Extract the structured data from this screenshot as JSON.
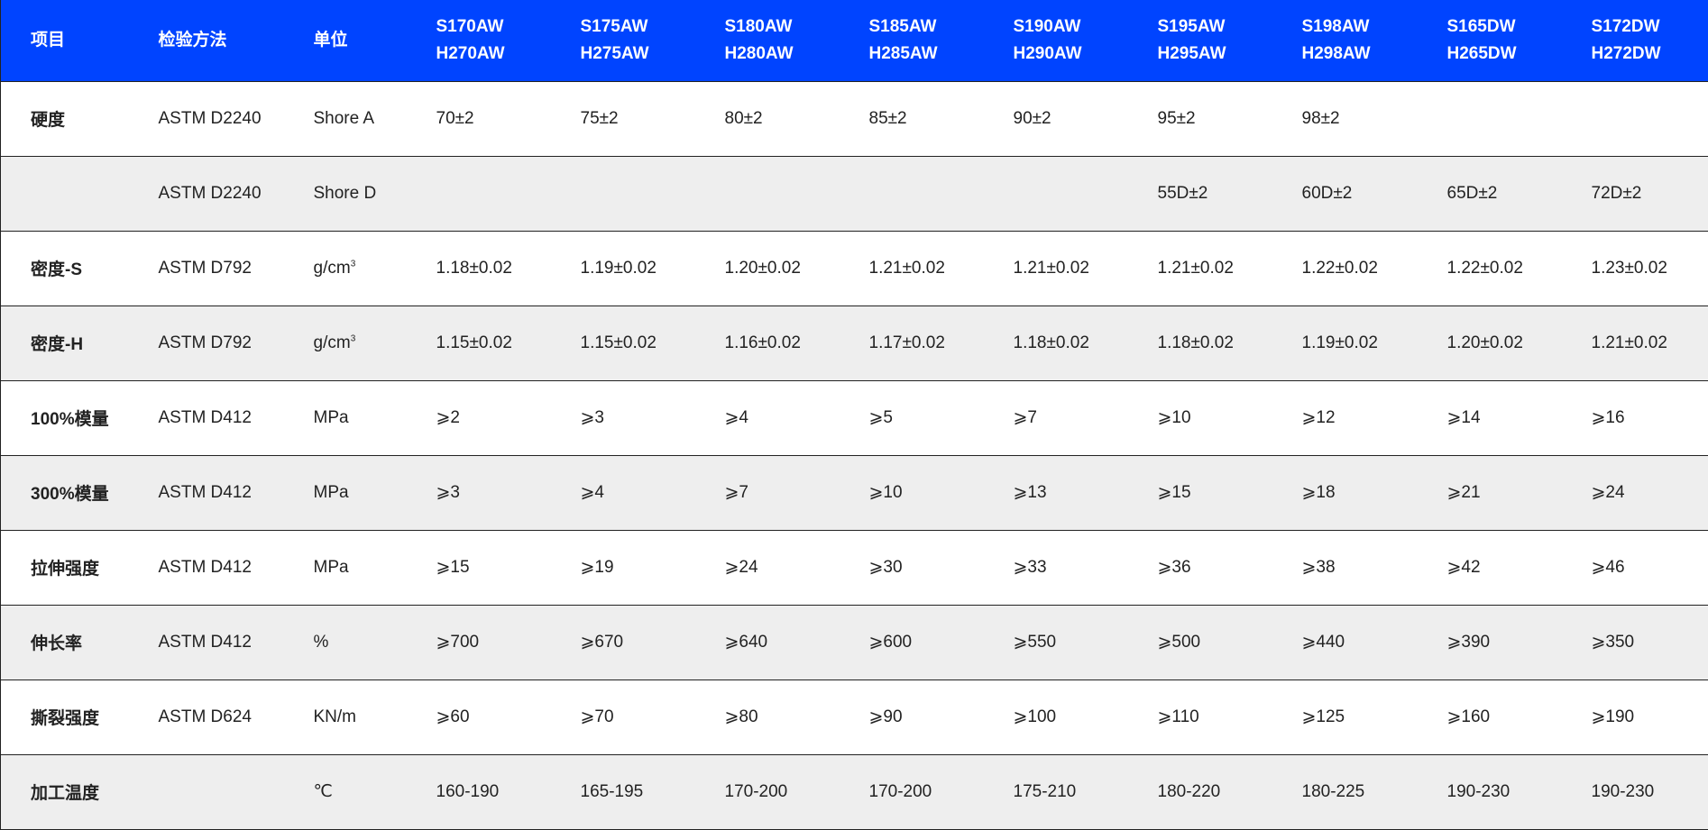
{
  "colors": {
    "header_bg": "#0044ff",
    "alt_row_bg": "#eeeeee"
  },
  "header": {
    "item": "项目",
    "method": "检验方法",
    "unit": "单位",
    "grades": [
      [
        "S170AW",
        "H270AW"
      ],
      [
        "S175AW",
        "H275AW"
      ],
      [
        "S180AW",
        "H280AW"
      ],
      [
        "S185AW",
        "H285AW"
      ],
      [
        "S190AW",
        "H290AW"
      ],
      [
        "S195AW",
        "H295AW"
      ],
      [
        "S198AW",
        "H298AW"
      ],
      [
        "S165DW",
        "H265DW"
      ],
      [
        "S172DW",
        "H272DW"
      ]
    ]
  },
  "rows": [
    {
      "item": "硬度",
      "method": "ASTM D2240",
      "unit": "Shore A",
      "values": [
        "70±2",
        "75±2",
        "80±2",
        "85±2",
        "90±2",
        "95±2",
        "98±2",
        "",
        ""
      ]
    },
    {
      "item": "",
      "method": "ASTM D2240",
      "unit": "Shore D",
      "values": [
        "",
        "",
        "",
        "",
        "",
        "55D±2",
        "60D±2",
        "65D±2",
        "72D±2"
      ]
    },
    {
      "item": "密度-S",
      "method": "ASTM D792",
      "unit": "g/cm",
      "unit_sup": "3",
      "values": [
        "1.18±0.02",
        "1.19±0.02",
        "1.20±0.02",
        "1.21±0.02",
        "1.21±0.02",
        "1.21±0.02",
        "1.22±0.02",
        "1.22±0.02",
        "1.23±0.02"
      ]
    },
    {
      "item": "密度-H",
      "method": "ASTM D792",
      "unit": "g/cm",
      "unit_sup": "3",
      "values": [
        "1.15±0.02",
        "1.15±0.02",
        "1.16±0.02",
        "1.17±0.02",
        "1.18±0.02",
        "1.18±0.02",
        "1.19±0.02",
        "1.20±0.02",
        "1.21±0.02"
      ]
    },
    {
      "item": "100%模量",
      "method": "ASTM D412",
      "unit": "MPa",
      "values": [
        "⩾2",
        "⩾3",
        "⩾4",
        "⩾5",
        "⩾7",
        "⩾10",
        "⩾12",
        "⩾14",
        "⩾16"
      ]
    },
    {
      "item": "300%模量",
      "method": "ASTM D412",
      "unit": "MPa",
      "values": [
        "⩾3",
        "⩾4",
        "⩾7",
        "⩾10",
        "⩾13",
        "⩾15",
        "⩾18",
        "⩾21",
        "⩾24"
      ]
    },
    {
      "item": "拉伸强度",
      "method": "ASTM D412",
      "unit": "MPa",
      "values": [
        "⩾15",
        "⩾19",
        "⩾24",
        "⩾30",
        "⩾33",
        "⩾36",
        "⩾38",
        "⩾42",
        "⩾46"
      ]
    },
    {
      "item": "伸长率",
      "method": "ASTM D412",
      "unit": "%",
      "values": [
        "⩾700",
        "⩾670",
        "⩾640",
        "⩾600",
        "⩾550",
        "⩾500",
        "⩾440",
        "⩾390",
        "⩾350"
      ]
    },
    {
      "item": "撕裂强度",
      "method": "ASTM D624",
      "unit": "KN/m",
      "values": [
        "⩾60",
        "⩾70",
        "⩾80",
        "⩾90",
        "⩾100",
        "⩾110",
        "⩾125",
        "⩾160",
        "⩾190"
      ]
    },
    {
      "item": "加工温度",
      "method": "",
      "unit": "℃",
      "values": [
        "160-190",
        "165-195",
        "170-200",
        "170-200",
        "175-210",
        "180-220",
        "180-225",
        "190-230",
        "190-230"
      ]
    }
  ]
}
